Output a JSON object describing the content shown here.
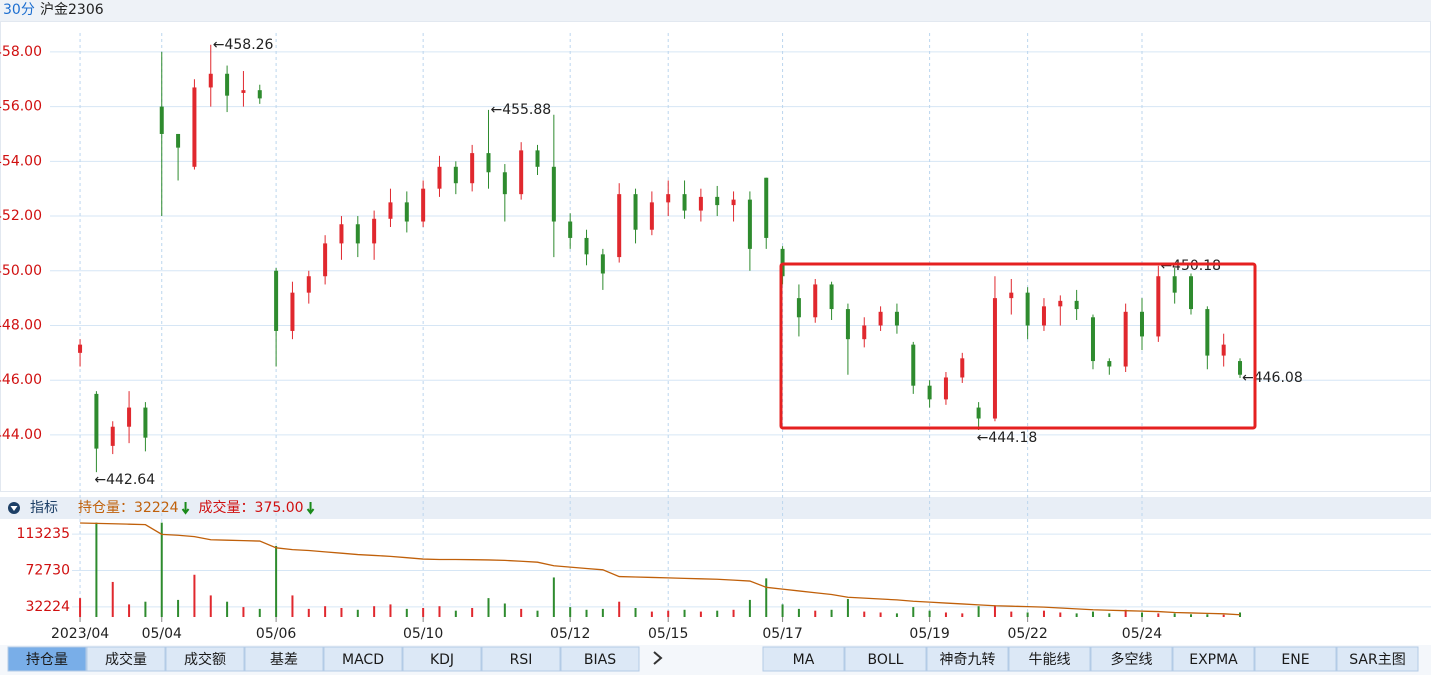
{
  "header": {
    "period": "30分",
    "symbol": "沪金2306"
  },
  "chart_data": [
    {
      "type": "candlestick",
      "xlim": [
        -1.84,
        82.69
      ],
      "ylim": [
        442.17,
        458.69
      ],
      "yticks": [
        {
          "value": 444,
          "label": "444.00"
        },
        {
          "value": 446,
          "label": "446.00"
        },
        {
          "value": 448,
          "label": "448.00"
        },
        {
          "value": 450,
          "label": "450.00"
        },
        {
          "value": 452,
          "label": "452.00"
        },
        {
          "value": 454,
          "label": "454.00"
        },
        {
          "value": 456,
          "label": "456.00"
        },
        {
          "value": 458,
          "label": "458.00"
        }
      ],
      "xticks": [
        {
          "value": 0,
          "label": "2023/04"
        },
        {
          "value": 5,
          "label": "05/04"
        },
        {
          "value": 12,
          "label": "05/06"
        },
        {
          "value": 21,
          "label": "05/10"
        },
        {
          "value": 30,
          "label": "05/12"
        },
        {
          "value": 36,
          "label": "05/15"
        },
        {
          "value": 43,
          "label": "05/17"
        },
        {
          "value": 52,
          "label": "05/19"
        },
        {
          "value": 58,
          "label": "05/22"
        },
        {
          "value": 65,
          "label": "05/24"
        }
      ],
      "up_color": "#e0282e",
      "down_color": "#2e8b2e",
      "grid": true,
      "open": [
        447.0,
        445.5,
        443.6,
        444.3,
        445.0,
        456.0,
        455.0,
        453.8,
        456.7,
        457.2,
        456.5,
        456.6,
        450.0,
        447.8,
        449.2,
        449.8,
        451.0,
        451.7,
        451.0,
        451.9,
        452.5,
        451.8,
        453.0,
        453.8,
        453.2,
        454.3,
        453.6,
        452.8,
        454.4,
        453.8,
        451.8,
        451.2,
        450.6,
        450.5,
        452.8,
        451.5,
        452.5,
        452.8,
        452.2,
        452.7,
        452.4,
        452.6,
        453.4,
        450.8,
        449.0,
        448.3,
        449.5,
        448.6,
        447.5,
        448.0,
        448.5,
        447.3,
        445.8,
        445.3,
        446.1,
        445.0,
        444.6,
        449.0,
        449.2,
        448.0,
        448.7,
        448.9,
        448.3,
        446.7,
        446.5,
        448.5,
        447.6,
        449.8,
        449.8,
        448.6,
        446.9,
        446.7
      ],
      "high": [
        447.5,
        445.6,
        444.5,
        445.6,
        445.2,
        458.0,
        455.0,
        457.0,
        458.26,
        457.5,
        457.3,
        456.8,
        450.1,
        449.6,
        450.0,
        451.3,
        452.0,
        452.0,
        452.2,
        453.0,
        452.9,
        453.3,
        454.2,
        454.0,
        454.6,
        455.88,
        453.9,
        454.7,
        454.6,
        455.7,
        452.1,
        451.5,
        450.8,
        453.2,
        453.0,
        452.9,
        453.3,
        453.3,
        453.0,
        453.1,
        452.9,
        452.9,
        453.4,
        450.9,
        449.5,
        449.7,
        449.6,
        448.8,
        448.3,
        448.7,
        448.8,
        447.4,
        446.0,
        446.3,
        447.0,
        445.2,
        449.8,
        449.7,
        449.4,
        449.0,
        449.1,
        449.3,
        448.4,
        446.8,
        448.8,
        449.0,
        450.18,
        450.1,
        449.9,
        448.7,
        447.7,
        446.8
      ],
      "low": [
        446.5,
        442.64,
        443.3,
        443.7,
        443.4,
        452.0,
        453.3,
        453.7,
        456.0,
        455.8,
        456.0,
        456.1,
        446.5,
        447.5,
        448.8,
        449.5,
        450.4,
        450.5,
        450.4,
        451.6,
        451.4,
        451.6,
        452.7,
        452.8,
        452.9,
        453.0,
        451.8,
        452.6,
        453.5,
        450.5,
        450.8,
        450.2,
        449.3,
        450.3,
        451.0,
        451.3,
        452.0,
        451.9,
        451.8,
        452.0,
        451.8,
        450.0,
        450.8,
        449.5,
        447.6,
        448.1,
        448.2,
        446.2,
        447.2,
        447.8,
        447.7,
        445.5,
        445.0,
        445.1,
        445.9,
        444.18,
        444.5,
        448.4,
        447.5,
        447.8,
        448.0,
        448.2,
        446.4,
        446.2,
        446.3,
        447.1,
        447.4,
        448.8,
        448.4,
        446.4,
        446.5,
        446.08
      ],
      "close": [
        447.3,
        443.5,
        444.3,
        445.0,
        443.9,
        455.0,
        454.5,
        456.7,
        457.2,
        456.4,
        456.6,
        456.3,
        447.8,
        449.2,
        449.8,
        451.0,
        451.7,
        451.0,
        451.9,
        452.5,
        451.8,
        453.0,
        453.8,
        453.2,
        454.3,
        453.6,
        452.8,
        454.4,
        453.8,
        451.8,
        451.2,
        450.6,
        449.9,
        452.8,
        451.5,
        452.5,
        452.8,
        452.2,
        452.7,
        452.4,
        452.6,
        450.8,
        451.2,
        449.8,
        448.3,
        449.5,
        448.6,
        447.5,
        448.0,
        448.5,
        448.0,
        445.8,
        445.3,
        446.1,
        446.8,
        444.6,
        449.0,
        449.2,
        448.0,
        448.7,
        448.9,
        448.6,
        446.7,
        446.5,
        448.5,
        447.6,
        449.8,
        449.2,
        448.6,
        446.9,
        447.3,
        446.2
      ],
      "annotations": [
        {
          "index": 8,
          "value": 458.26,
          "label": "←458.26"
        },
        {
          "index": 25,
          "value": 455.88,
          "label": "←455.88"
        },
        {
          "index": 1,
          "value": 442.64,
          "label": "←442.64"
        },
        {
          "index": 55,
          "value": 444.18,
          "label": "←444.18"
        },
        {
          "index": 66,
          "value": 450.18,
          "label": "←450.18"
        },
        {
          "index": 71,
          "value": 446.08,
          "label": "←446.08"
        }
      ]
    },
    {
      "type": "volume",
      "title": "指标",
      "ylim": [
        20970,
        126740
      ],
      "yticks": [
        32224,
        72730,
        113235
      ],
      "readouts": [
        {
          "label": "持仓量：",
          "value": 32224,
          "color": "#c0600a"
        },
        {
          "label": "成交量：",
          "value": 375,
          "value_label": "375.00",
          "color": "#d01010"
        }
      ],
      "series": [
        {
          "color": "#c0600a",
          "values": [
            125600,
            125200,
            124800,
            124300,
            123800,
            113000,
            112000,
            110500,
            107000,
            106500,
            106000,
            105500,
            98000,
            96000,
            95000,
            93500,
            92000,
            90500,
            89500,
            88500,
            87000,
            85500,
            85000,
            85000,
            84800,
            84500,
            84000,
            83000,
            82000,
            78000,
            76500,
            75000,
            73500,
            66000,
            65500,
            65000,
            64500,
            64000,
            63500,
            63000,
            62000,
            61000,
            54000,
            52000,
            50000,
            48000,
            46000,
            43000,
            42000,
            41000,
            40000,
            38500,
            37500,
            36500,
            35500,
            34500,
            33500,
            33000,
            32500,
            32000,
            31000,
            30000,
            29000,
            28500,
            28000,
            27500,
            27000,
            26000,
            25500,
            25000,
            24500,
            23500
          ]
        },
        {
          "values": [
            42000,
            126000,
            60000,
            35000,
            38000,
            126000,
            40000,
            68000,
            45000,
            38000,
            32000,
            30000,
            100000,
            45000,
            30000,
            33000,
            31000,
            29000,
            33000,
            35000,
            30000,
            31000,
            33000,
            28000,
            31000,
            42000,
            36000,
            30000,
            28000,
            65000,
            32000,
            29000,
            30000,
            38000,
            31000,
            27000,
            28000,
            29000,
            27000,
            28000,
            29000,
            40000,
            64000,
            35000,
            30000,
            28000,
            29000,
            41000,
            27000,
            26000,
            25000,
            32000,
            28000,
            26000,
            25000,
            33000,
            34000,
            27000,
            26000,
            28000,
            26000,
            25000,
            27000,
            25000,
            29000,
            26000,
            25000,
            25000,
            24000,
            24000,
            23500,
            26000
          ]
        }
      ]
    }
  ],
  "tabs": {
    "left": [
      "持仓量",
      "成交量",
      "成交额",
      "基差",
      "MACD",
      "KDJ",
      "RSI",
      "BIAS"
    ],
    "right": [
      "MA",
      "BOLL",
      "神奇九转",
      "牛能线",
      "多空线",
      "EXPMA",
      "ENE",
      "SAR主图"
    ],
    "selected": 0
  }
}
